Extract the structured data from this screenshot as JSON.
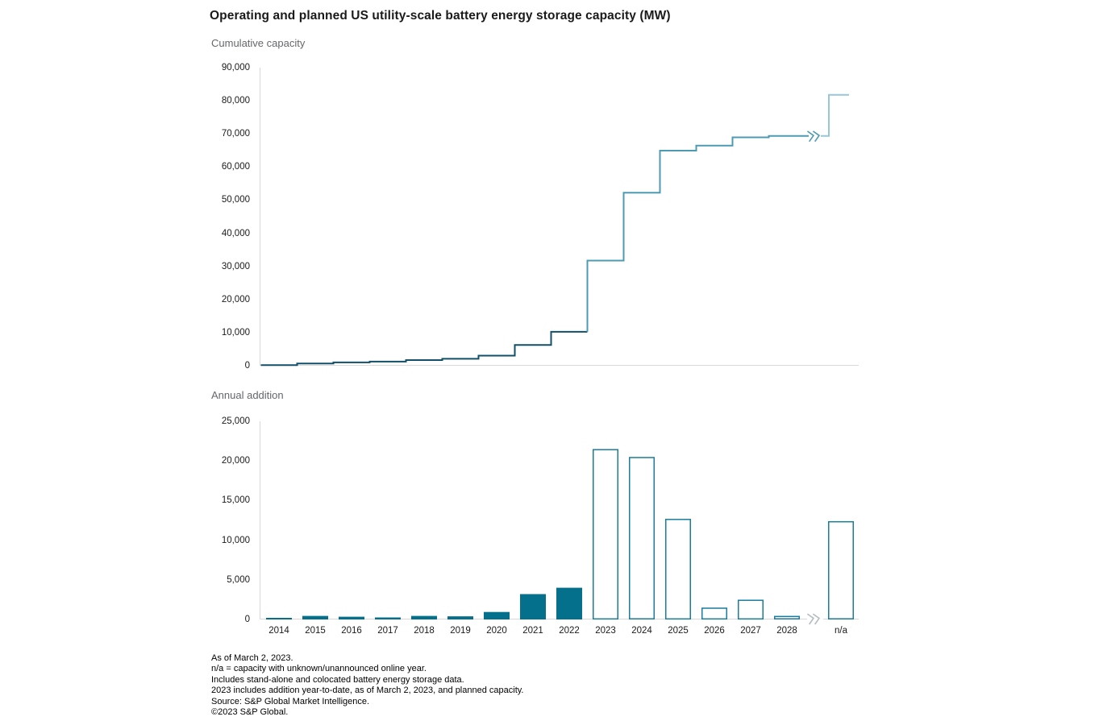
{
  "title": "Operating and planned US utility-scale battery energy storage capacity (MW)",
  "colors": {
    "bar_operating_fill": "#04708B",
    "bar_planned_stroke": "#1B7C9D",
    "line_operating": "#124F68",
    "line_planned": "#4C9BB3",
    "line_unknown": "#97C6D6",
    "line_break_icon": "#4C9BB3",
    "axis_break_icon": "#B4BCC2",
    "axis_line": "#D8D8D8",
    "subtitle_text": "#64676B",
    "text": "#1A1A1A"
  },
  "chart_data": [
    {
      "type": "line",
      "step": true,
      "title": "Cumulative capacity",
      "categories": [
        "2014",
        "2015",
        "2016",
        "2017",
        "2018",
        "2019",
        "2020",
        "2021",
        "2022",
        "2023",
        "2024",
        "2025",
        "2026",
        "2027",
        "2028",
        "n/a"
      ],
      "values": [
        200,
        650,
        1000,
        1250,
        1700,
        2100,
        3050,
        6250,
        10250,
        31750,
        52250,
        64950,
        66450,
        68950,
        69400,
        81800
      ],
      "ylabel": "MW",
      "ylim": [
        0,
        90000
      ],
      "yticks": [
        0,
        10000,
        20000,
        30000,
        40000,
        50000,
        60000,
        70000,
        80000,
        90000
      ],
      "operating_count": 9,
      "unknown_category": "n/a",
      "axis_break_between": [
        "2028",
        "n/a"
      ],
      "grid": false,
      "legend": "none"
    },
    {
      "type": "bar",
      "title": "Annual addition",
      "categories": [
        "2014",
        "2015",
        "2016",
        "2017",
        "2018",
        "2019",
        "2020",
        "2021",
        "2022",
        "2023",
        "2024",
        "2025",
        "2026",
        "2027",
        "2028",
        "n/a"
      ],
      "values": [
        200,
        450,
        350,
        250,
        450,
        400,
        950,
        3200,
        4000,
        21500,
        20500,
        12700,
        1500,
        2500,
        450,
        12400
      ],
      "ylabel": "MW",
      "ylim": [
        0,
        25000
      ],
      "yticks": [
        0,
        5000,
        10000,
        15000,
        20000,
        25000
      ],
      "operating_count": 9,
      "unknown_category": "n/a",
      "axis_break_between": [
        "2028",
        "n/a"
      ],
      "grid": false,
      "legend": "none"
    }
  ],
  "footnotes": [
    "As of March 2, 2023.",
    "n/a = capacity with unknown/unannounced online year.",
    "Includes stand-alone and colocated battery energy storage data.",
    "2023 includes addition year-to-date, as of March 2, 2023, and planned capacity.",
    "Source: S&P Global Market Intelligence.",
    "©2023 S&P Global."
  ]
}
